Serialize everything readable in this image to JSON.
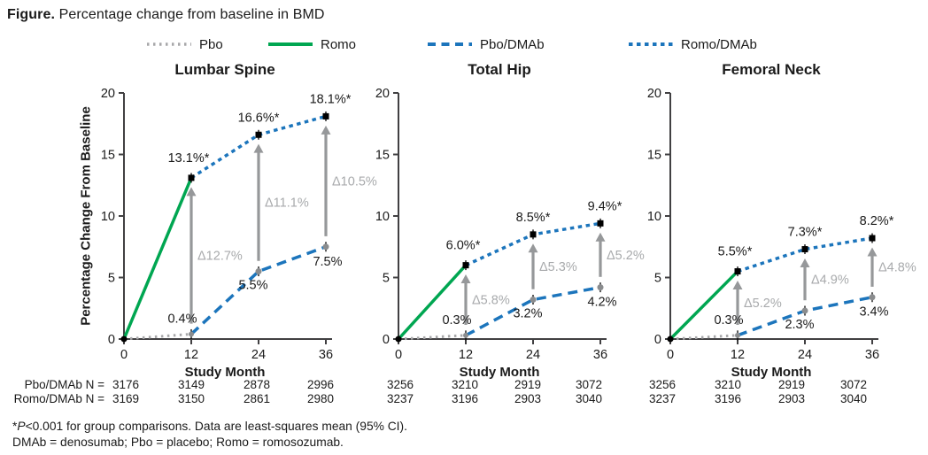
{
  "figure_title": {
    "bold": "Figure.",
    "rest": " Percentage change from baseline in BMD"
  },
  "legend": {
    "items": [
      {
        "label": "Pbo",
        "series": "Pbo"
      },
      {
        "label": "Romo",
        "series": "Romo"
      },
      {
        "label": "Pbo/DMAb",
        "series": "Pbo/DMAb"
      },
      {
        "label": "Romo/DMAb",
        "series": "Romo/DMAb"
      }
    ]
  },
  "colors": {
    "green": "#00A651",
    "blue": "#1C75BC",
    "gray_line": "#A7A7A9",
    "arrow": "#96989A",
    "delta_text": "#A8AAAC",
    "marker_gray": "#8A8C8E",
    "marker_black": "#000000",
    "axis": "#414042"
  },
  "chart_data": {
    "type": "line",
    "xlabel": "Study Month",
    "ylabel": "Percentage Change From Baseline",
    "x_ticks": [
      0,
      12,
      24,
      36
    ],
    "y_ticks": [
      0,
      5,
      10,
      15,
      20
    ],
    "ylim": [
      0,
      20
    ],
    "panels": [
      {
        "title": "Lumbar Spine",
        "series": [
          {
            "name": "Pbo",
            "x": [
              0,
              12
            ],
            "values": [
              0,
              0.4
            ]
          },
          {
            "name": "Romo",
            "x": [
              0,
              12
            ],
            "values": [
              0,
              13.1
            ]
          },
          {
            "name": "Pbo/DMAb",
            "x": [
              12,
              24,
              36
            ],
            "values": [
              0.4,
              5.5,
              7.5
            ]
          },
          {
            "name": "Romo/DMAb",
            "x": [
              12,
              24,
              36
            ],
            "values": [
              13.1,
              16.6,
              18.1
            ]
          }
        ],
        "point_labels": [
          {
            "series": "Romo",
            "month": 12,
            "text": "13.1%*"
          },
          {
            "series": "Romo/DMAb",
            "month": 24,
            "text": "16.6%*"
          },
          {
            "series": "Romo/DMAb",
            "month": 36,
            "text": "18.1%*"
          },
          {
            "series": "Pbo",
            "month": 12,
            "text": "0.4%"
          },
          {
            "series": "Pbo/DMAb",
            "month": 24,
            "text": "5.5%"
          },
          {
            "series": "Pbo/DMAb",
            "month": 36,
            "text": "7.5%"
          }
        ],
        "deltas": [
          {
            "month": 12,
            "text": "Δ12.7%"
          },
          {
            "month": 24,
            "text": "Δ11.1%"
          },
          {
            "month": 36,
            "text": "Δ10.5%"
          }
        ]
      },
      {
        "title": "Total Hip",
        "series": [
          {
            "name": "Pbo",
            "x": [
              0,
              12
            ],
            "values": [
              0,
              0.3
            ]
          },
          {
            "name": "Romo",
            "x": [
              0,
              12
            ],
            "values": [
              0,
              6.0
            ]
          },
          {
            "name": "Pbo/DMAb",
            "x": [
              12,
              24,
              36
            ],
            "values": [
              0.3,
              3.2,
              4.2
            ]
          },
          {
            "name": "Romo/DMAb",
            "x": [
              12,
              24,
              36
            ],
            "values": [
              6.0,
              8.5,
              9.4
            ]
          }
        ],
        "point_labels": [
          {
            "series": "Romo",
            "month": 12,
            "text": "6.0%*"
          },
          {
            "series": "Romo/DMAb",
            "month": 24,
            "text": "8.5%*"
          },
          {
            "series": "Romo/DMAb",
            "month": 36,
            "text": "9.4%*"
          },
          {
            "series": "Pbo",
            "month": 12,
            "text": "0.3%"
          },
          {
            "series": "Pbo/DMAb",
            "month": 24,
            "text": "3.2%"
          },
          {
            "series": "Pbo/DMAb",
            "month": 36,
            "text": "4.2%"
          }
        ],
        "deltas": [
          {
            "month": 12,
            "text": "Δ5.8%"
          },
          {
            "month": 24,
            "text": "Δ5.3%"
          },
          {
            "month": 36,
            "text": "Δ5.2%"
          }
        ]
      },
      {
        "title": "Femoral Neck",
        "series": [
          {
            "name": "Pbo",
            "x": [
              0,
              12
            ],
            "values": [
              0,
              0.3
            ]
          },
          {
            "name": "Romo",
            "x": [
              0,
              12
            ],
            "values": [
              0,
              5.5
            ]
          },
          {
            "name": "Pbo/DMAb",
            "x": [
              12,
              24,
              36
            ],
            "values": [
              0.3,
              2.3,
              3.4
            ]
          },
          {
            "name": "Romo/DMAb",
            "x": [
              12,
              24,
              36
            ],
            "values": [
              5.5,
              7.3,
              8.2
            ]
          }
        ],
        "point_labels": [
          {
            "series": "Romo",
            "month": 12,
            "text": "5.5%*"
          },
          {
            "series": "Romo/DMAb",
            "month": 24,
            "text": "7.3%*"
          },
          {
            "series": "Romo/DMAb",
            "month": 36,
            "text": "8.2%*"
          },
          {
            "series": "Pbo",
            "month": 12,
            "text": "0.3%"
          },
          {
            "series": "Pbo/DMAb",
            "month": 24,
            "text": "2.3%"
          },
          {
            "series": "Pbo/DMAb",
            "month": 36,
            "text": "3.4%"
          }
        ],
        "deltas": [
          {
            "month": 12,
            "text": "Δ5.2%"
          },
          {
            "month": 24,
            "text": "Δ4.9%"
          },
          {
            "month": 36,
            "text": "Δ4.8%"
          }
        ]
      }
    ]
  },
  "n_table": {
    "rows": [
      {
        "label": "Pbo/DMAb N =",
        "values": [
          "3176",
          "3149",
          "2878",
          "2996",
          "3256",
          "3210",
          "2919",
          "3072",
          "3256",
          "3210",
          "2919",
          "3072"
        ]
      },
      {
        "label": "Romo/DMAb N =",
        "values": [
          "3169",
          "3150",
          "2861",
          "2980",
          "3237",
          "3196",
          "2903",
          "3040",
          "3237",
          "3196",
          "2903",
          "3040"
        ]
      }
    ]
  },
  "footnotes": {
    "line1_star": "*",
    "line1_italic": "P",
    "line1_rest": "<0.001 for group comparisons. Data are least-squares mean (95% CI).",
    "line2": "DMAb = denosumab; Pbo = placebo; Romo = romosozumab."
  }
}
